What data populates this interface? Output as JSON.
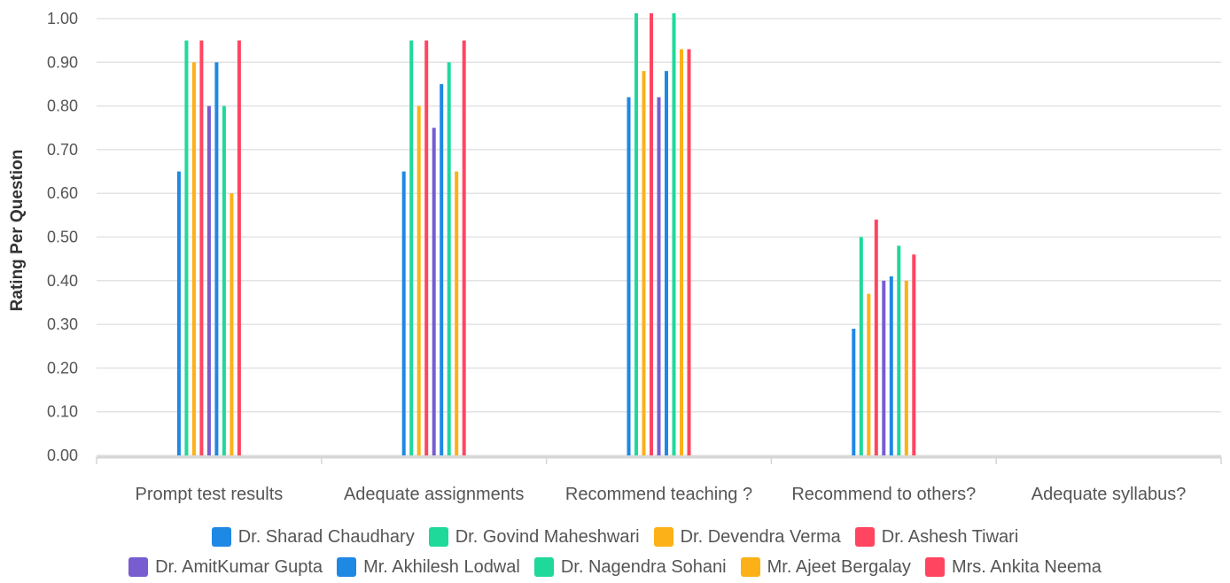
{
  "chart_data": {
    "type": "bar",
    "title": "",
    "xlabel": "",
    "ylabel": "Rating Per Question",
    "ylim": [
      0,
      1.0
    ],
    "y_ticks": [
      "0.00",
      "0.10",
      "0.20",
      "0.30",
      "0.40",
      "0.50",
      "0.60",
      "0.70",
      "0.80",
      "0.90",
      "1.00"
    ],
    "grid": true,
    "legend_position": "bottom",
    "categories": [
      "Prompt test results",
      "Adequate assignments",
      "Recommend teaching ?",
      "Recommend to others?",
      "Adequate syllabus?"
    ],
    "series": [
      {
        "name": "Dr. Sharad Chaudhary",
        "color": "#1e88e5",
        "values": [
          0.65,
          0.65,
          0.82,
          0.29,
          null
        ]
      },
      {
        "name": "Dr. Govind Maheshwari",
        "color": "#1fd99a",
        "values": [
          0.95,
          0.95,
          1.02,
          0.5,
          null
        ]
      },
      {
        "name": "Dr. Devendra Verma",
        "color": "#fbb117",
        "values": [
          0.9,
          0.8,
          0.88,
          0.37,
          null
        ]
      },
      {
        "name": "Dr. Ashesh Tiwari",
        "color": "#ff4560",
        "values": [
          0.95,
          0.95,
          1.02,
          0.54,
          null
        ]
      },
      {
        "name": "Dr. AmitKumar Gupta",
        "color": "#775dd0",
        "values": [
          0.8,
          0.75,
          0.82,
          0.4,
          null
        ]
      },
      {
        "name": "Mr. Akhilesh Lodwal",
        "color": "#1e88e5",
        "values": [
          0.9,
          0.85,
          0.88,
          0.41,
          null
        ]
      },
      {
        "name": "Dr. Nagendra Sohani",
        "color": "#1fd99a",
        "values": [
          0.8,
          0.9,
          1.02,
          0.48,
          null
        ]
      },
      {
        "name": "Mr. Ajeet Bergalay",
        "color": "#fbb117",
        "values": [
          0.6,
          0.65,
          0.93,
          0.4,
          null
        ]
      },
      {
        "name": "Mrs. Ankita Neema",
        "color": "#ff4560",
        "values": [
          0.95,
          0.95,
          0.93,
          0.46,
          null
        ]
      }
    ]
  }
}
